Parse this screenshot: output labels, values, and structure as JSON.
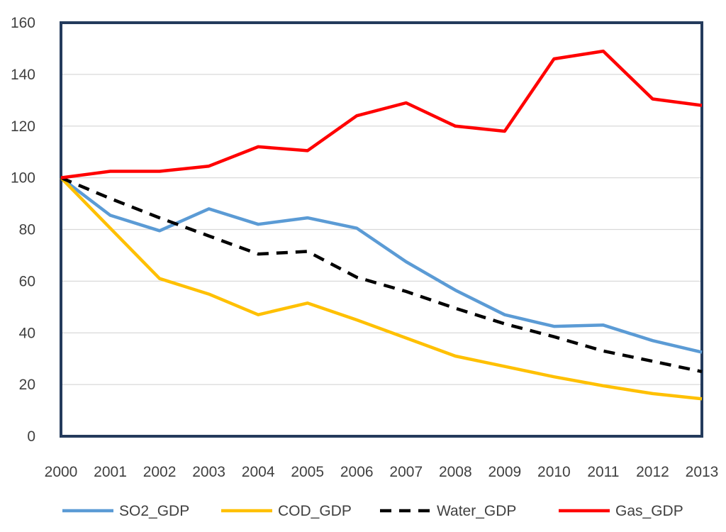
{
  "chart_data": {
    "type": "line",
    "title": "",
    "xlabel": "",
    "ylabel": "",
    "ylim": [
      0,
      160
    ],
    "yticks": [
      0,
      20,
      40,
      60,
      80,
      100,
      120,
      140,
      160
    ],
    "x": [
      2000,
      2001,
      2002,
      2003,
      2004,
      2005,
      2006,
      2007,
      2008,
      2009,
      2010,
      2011,
      2012,
      2013
    ],
    "legend_position": "bottom",
    "grid": true,
    "series": [
      {
        "name": "SO2_GDP",
        "color": "#5B9BD5",
        "dash": "solid",
        "values": [
          100,
          85.5,
          79.5,
          88,
          82,
          84.5,
          80.5,
          67.5,
          56.5,
          47,
          42.5,
          43,
          37,
          32.5
        ]
      },
      {
        "name": "COD_GDP",
        "color": "#FFC000",
        "dash": "solid",
        "values": [
          100,
          80.5,
          61,
          55,
          47,
          51.5,
          45,
          38,
          31,
          27,
          23,
          19.5,
          16.5,
          14.5
        ]
      },
      {
        "name": "Water_GDP",
        "color": "#000000",
        "dash": "dashed",
        "values": [
          100,
          92,
          84.5,
          77.5,
          70.5,
          71.5,
          61.5,
          56,
          49.5,
          43.5,
          38.5,
          33,
          29,
          25
        ]
      },
      {
        "name": "Gas_GDP",
        "color": "#FF0000",
        "dash": "solid",
        "values": [
          100,
          102.5,
          102.5,
          104.5,
          112,
          110.5,
          124,
          129,
          120,
          118,
          146,
          149,
          130.5,
          128
        ]
      }
    ]
  }
}
